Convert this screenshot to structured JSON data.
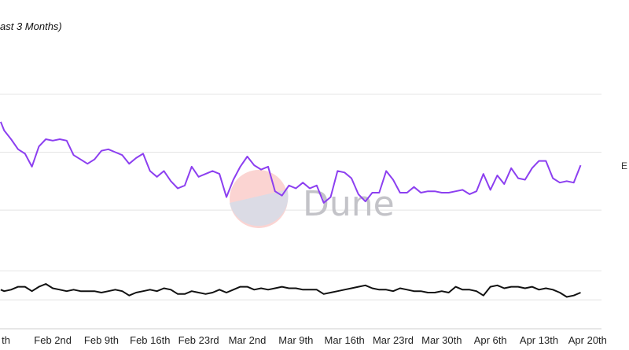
{
  "chart_data": {
    "type": "line",
    "title": "ast 3 Months)",
    "legend_label": "E",
    "watermark": "Dune",
    "grid": true,
    "x_tick_labels": [
      "th",
      "Feb 2nd",
      "Feb 9th",
      "Feb 16th",
      "Feb 23rd",
      "Mar 2nd",
      "Mar 9th",
      "Mar 16th",
      "Mar 23rd",
      "Mar 30th",
      "Apr 6th",
      "Apr 13th",
      "Apr 20th"
    ],
    "x_tick_days": [
      -7,
      0,
      7,
      14,
      21,
      28,
      35,
      42,
      49,
      56,
      63,
      70,
      77
    ],
    "xlim": [
      -7.6,
      79
    ],
    "ylim": [
      0,
      10
    ],
    "gridlines_y": [
      1,
      2,
      4.1,
      6.1,
      8.1
    ],
    "colors": {
      "purple_series": "#8c3ff0",
      "black_series": "#111111",
      "grid": "#e4e4e4"
    },
    "series": [
      {
        "color": "#8c3ff0",
        "points": [
          [
            -7.5,
            7.15
          ],
          [
            -7,
            6.85
          ],
          [
            -6,
            6.55
          ],
          [
            -5,
            6.2
          ],
          [
            -4,
            6.05
          ],
          [
            -3,
            5.6
          ],
          [
            -2,
            6.3
          ],
          [
            -1,
            6.55
          ],
          [
            0,
            6.5
          ],
          [
            1,
            6.55
          ],
          [
            2,
            6.5
          ],
          [
            3,
            6.0
          ],
          [
            4,
            5.85
          ],
          [
            5,
            5.7
          ],
          [
            6,
            5.85
          ],
          [
            7,
            6.15
          ],
          [
            8,
            6.2
          ],
          [
            9,
            6.1
          ],
          [
            10,
            6.0
          ],
          [
            11,
            5.7
          ],
          [
            12,
            5.9
          ],
          [
            13,
            6.05
          ],
          [
            14,
            5.45
          ],
          [
            15,
            5.25
          ],
          [
            16,
            5.45
          ],
          [
            17,
            5.1
          ],
          [
            18,
            4.85
          ],
          [
            19,
            4.95
          ],
          [
            20,
            5.6
          ],
          [
            21,
            5.25
          ],
          [
            22,
            5.35
          ],
          [
            23,
            5.45
          ],
          [
            24,
            5.35
          ],
          [
            25,
            4.55
          ],
          [
            26,
            5.15
          ],
          [
            27,
            5.6
          ],
          [
            28,
            5.95
          ],
          [
            29,
            5.65
          ],
          [
            30,
            5.5
          ],
          [
            31,
            5.6
          ],
          [
            32,
            4.75
          ],
          [
            33,
            4.6
          ],
          [
            34,
            4.95
          ],
          [
            35,
            4.85
          ],
          [
            36,
            5.05
          ],
          [
            37,
            4.85
          ],
          [
            38,
            4.95
          ],
          [
            39,
            4.35
          ],
          [
            40,
            4.55
          ],
          [
            41,
            5.45
          ],
          [
            42,
            5.4
          ],
          [
            43,
            5.2
          ],
          [
            44,
            4.65
          ],
          [
            45,
            4.4
          ],
          [
            46,
            4.7
          ],
          [
            47,
            4.7
          ],
          [
            48,
            5.45
          ],
          [
            49,
            5.15
          ],
          [
            50,
            4.7
          ],
          [
            51,
            4.7
          ],
          [
            52,
            4.9
          ],
          [
            53,
            4.7
          ],
          [
            54,
            4.75
          ],
          [
            55,
            4.75
          ],
          [
            56,
            4.7
          ],
          [
            57,
            4.7
          ],
          [
            58,
            4.75
          ],
          [
            59,
            4.8
          ],
          [
            60,
            4.65
          ],
          [
            61,
            4.75
          ],
          [
            62,
            5.35
          ],
          [
            63,
            4.8
          ],
          [
            64,
            5.3
          ],
          [
            65,
            5.0
          ],
          [
            66,
            5.55
          ],
          [
            67,
            5.2
          ],
          [
            68,
            5.15
          ],
          [
            69,
            5.55
          ],
          [
            70,
            5.8
          ],
          [
            71,
            5.8
          ],
          [
            72,
            5.2
          ],
          [
            73,
            5.05
          ],
          [
            74,
            5.1
          ],
          [
            75,
            5.05
          ],
          [
            76,
            5.65
          ]
        ]
      },
      {
        "color": "#111111",
        "points": [
          [
            -7.5,
            1.35
          ],
          [
            -7,
            1.3
          ],
          [
            -6,
            1.35
          ],
          [
            -5,
            1.45
          ],
          [
            -4,
            1.45
          ],
          [
            -3,
            1.3
          ],
          [
            -2,
            1.45
          ],
          [
            -1,
            1.55
          ],
          [
            0,
            1.4
          ],
          [
            1,
            1.35
          ],
          [
            2,
            1.3
          ],
          [
            3,
            1.35
          ],
          [
            4,
            1.3
          ],
          [
            5,
            1.3
          ],
          [
            6,
            1.3
          ],
          [
            7,
            1.25
          ],
          [
            8,
            1.3
          ],
          [
            9,
            1.35
          ],
          [
            10,
            1.3
          ],
          [
            11,
            1.15
          ],
          [
            12,
            1.25
          ],
          [
            13,
            1.3
          ],
          [
            14,
            1.35
          ],
          [
            15,
            1.3
          ],
          [
            16,
            1.4
          ],
          [
            17,
            1.35
          ],
          [
            18,
            1.2
          ],
          [
            19,
            1.2
          ],
          [
            20,
            1.3
          ],
          [
            21,
            1.25
          ],
          [
            22,
            1.2
          ],
          [
            23,
            1.25
          ],
          [
            24,
            1.35
          ],
          [
            25,
            1.25
          ],
          [
            26,
            1.35
          ],
          [
            27,
            1.45
          ],
          [
            28,
            1.45
          ],
          [
            29,
            1.35
          ],
          [
            30,
            1.4
          ],
          [
            31,
            1.35
          ],
          [
            32,
            1.4
          ],
          [
            33,
            1.45
          ],
          [
            34,
            1.4
          ],
          [
            35,
            1.4
          ],
          [
            36,
            1.35
          ],
          [
            37,
            1.35
          ],
          [
            38,
            1.35
          ],
          [
            39,
            1.2
          ],
          [
            40,
            1.25
          ],
          [
            41,
            1.3
          ],
          [
            42,
            1.35
          ],
          [
            43,
            1.4
          ],
          [
            44,
            1.45
          ],
          [
            45,
            1.5
          ],
          [
            46,
            1.4
          ],
          [
            47,
            1.35
          ],
          [
            48,
            1.35
          ],
          [
            49,
            1.3
          ],
          [
            50,
            1.4
          ],
          [
            51,
            1.35
          ],
          [
            52,
            1.3
          ],
          [
            53,
            1.3
          ],
          [
            54,
            1.25
          ],
          [
            55,
            1.25
          ],
          [
            56,
            1.3
          ],
          [
            57,
            1.25
          ],
          [
            58,
            1.45
          ],
          [
            59,
            1.35
          ],
          [
            60,
            1.35
          ],
          [
            61,
            1.3
          ],
          [
            62,
            1.15
          ],
          [
            63,
            1.45
          ],
          [
            64,
            1.5
          ],
          [
            65,
            1.4
          ],
          [
            66,
            1.45
          ],
          [
            67,
            1.45
          ],
          [
            68,
            1.4
          ],
          [
            69,
            1.45
          ],
          [
            70,
            1.35
          ],
          [
            71,
            1.4
          ],
          [
            72,
            1.35
          ],
          [
            73,
            1.25
          ],
          [
            74,
            1.1
          ],
          [
            75,
            1.15
          ],
          [
            76,
            1.25
          ]
        ]
      }
    ]
  }
}
